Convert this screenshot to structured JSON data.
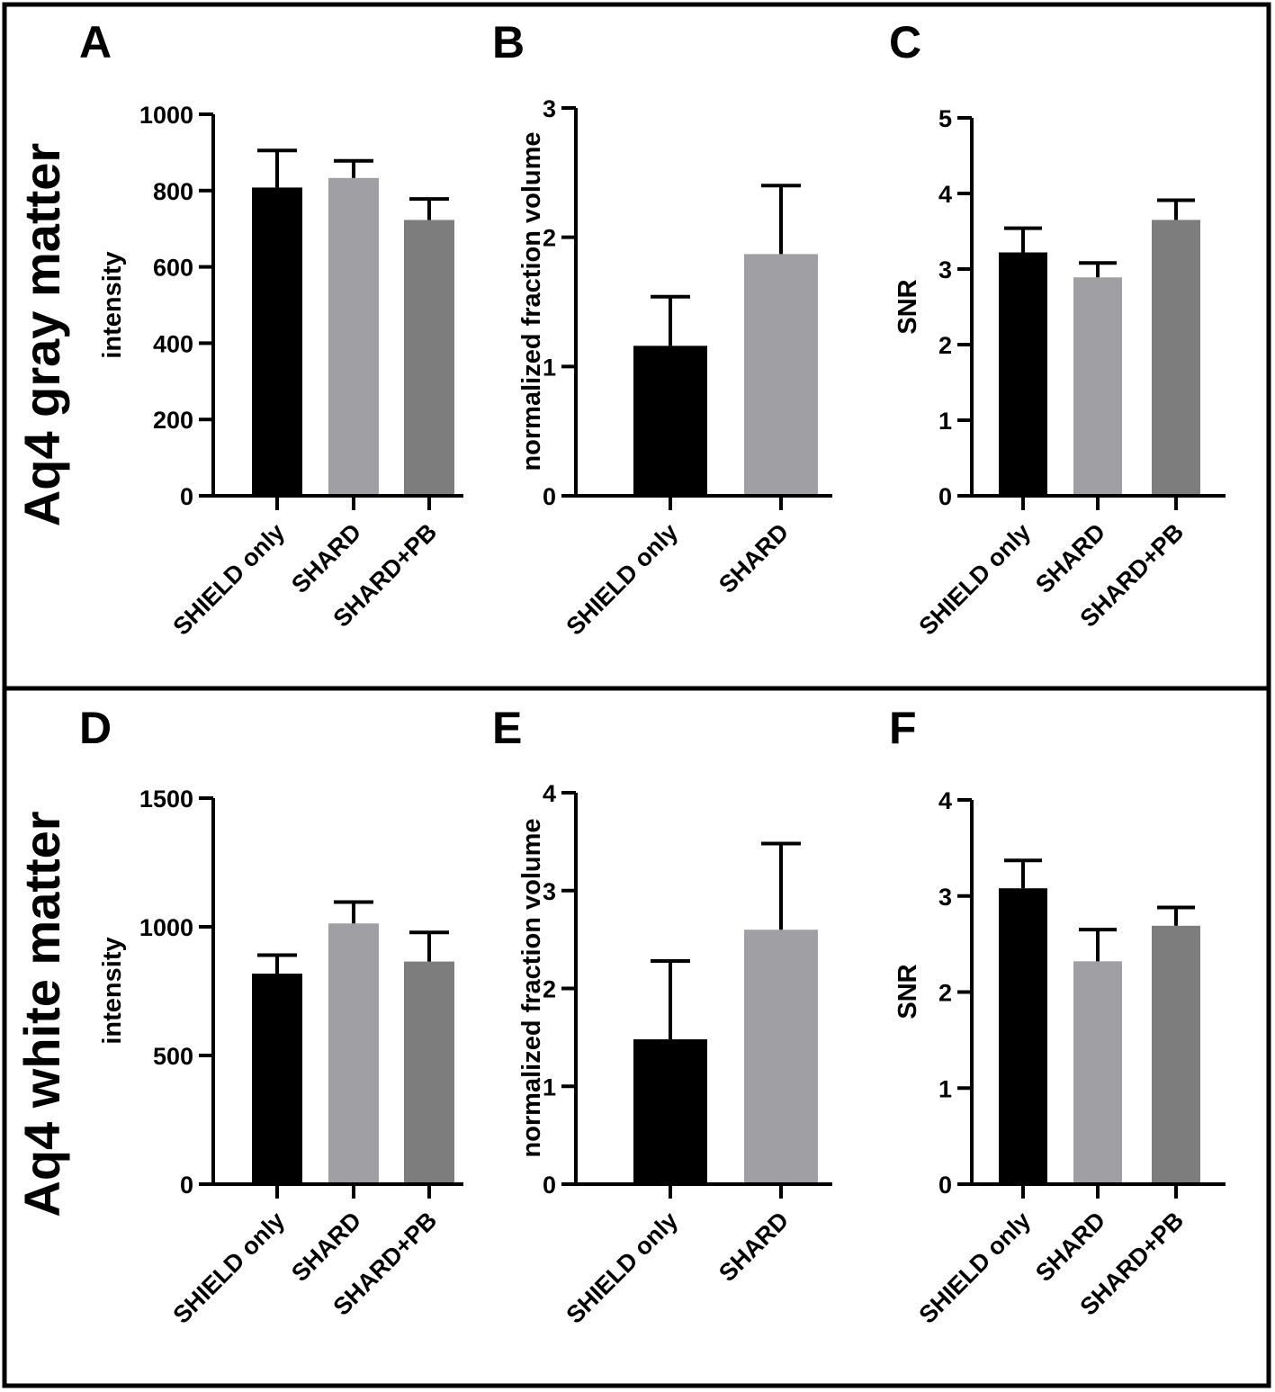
{
  "row_labels": {
    "top": "Aq4 gray matter",
    "bottom": "Aq4 white matter"
  },
  "colors": {
    "SHIELD only": "#000000",
    "SHARD": "#a0a0a4",
    "SHARD+PB": "#7d7d7d"
  },
  "chart_data": [
    {
      "panel": "A",
      "row": "top",
      "type": "bar",
      "ylabel": "intensity",
      "xlabel": "",
      "ylim": [
        0,
        1000
      ],
      "yticks": [
        0,
        200,
        400,
        600,
        800,
        1000
      ],
      "categories": [
        "SHIELD only",
        "SHARD",
        "SHARD+PB"
      ],
      "values": [
        808,
        833,
        723
      ],
      "errors": [
        97,
        45,
        55
      ]
    },
    {
      "panel": "B",
      "row": "top",
      "type": "bar",
      "ylabel": "normalized fraction volume",
      "xlabel": "",
      "ylim": [
        0,
        3
      ],
      "yticks": [
        0,
        1,
        2,
        3
      ],
      "categories": [
        "SHIELD only",
        "SHARD"
      ],
      "values": [
        1.16,
        1.87
      ],
      "errors": [
        0.38,
        0.53
      ]
    },
    {
      "panel": "C",
      "row": "top",
      "type": "bar",
      "ylabel": "SNR",
      "xlabel": "",
      "ylim": [
        0,
        5
      ],
      "yticks": [
        0,
        1,
        2,
        3,
        4,
        5
      ],
      "categories": [
        "SHIELD only",
        "SHARD",
        "SHARD+PB"
      ],
      "values": [
        3.22,
        2.89,
        3.65
      ],
      "errors": [
        0.32,
        0.19,
        0.26
      ]
    },
    {
      "panel": "D",
      "row": "bottom",
      "type": "bar",
      "ylabel": "intensity",
      "xlabel": "",
      "ylim": [
        0,
        1500
      ],
      "yticks": [
        0,
        500,
        1000,
        1500
      ],
      "categories": [
        "SHIELD only",
        "SHARD",
        "SHARD+PB"
      ],
      "values": [
        818,
        1013,
        865
      ],
      "errors": [
        72,
        83,
        113
      ]
    },
    {
      "panel": "E",
      "row": "bottom",
      "type": "bar",
      "ylabel": "normalized fraction volume",
      "xlabel": "",
      "ylim": [
        0,
        4
      ],
      "yticks": [
        0,
        1,
        2,
        3,
        4
      ],
      "categories": [
        "SHIELD only",
        "SHARD"
      ],
      "values": [
        1.48,
        2.6
      ],
      "errors": [
        0.8,
        0.88
      ]
    },
    {
      "panel": "F",
      "row": "bottom",
      "type": "bar",
      "ylabel": "SNR",
      "xlabel": "",
      "ylim": [
        0,
        4
      ],
      "yticks": [
        0,
        1,
        2,
        3,
        4
      ],
      "categories": [
        "SHIELD only",
        "SHARD",
        "SHARD+PB"
      ],
      "values": [
        3.08,
        2.32,
        2.69
      ],
      "errors": [
        0.29,
        0.33,
        0.19
      ]
    }
  ]
}
